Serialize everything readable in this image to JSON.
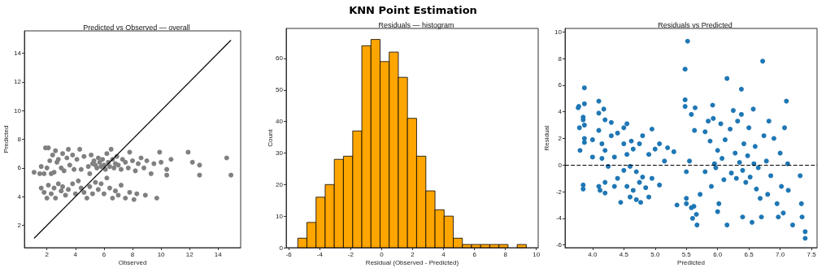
{
  "chart_data": [
    {
      "type": "other",
      "title": "KNN Point Estimation"
    },
    {
      "type": "scatter",
      "title": "Predicted vs Observed — overall",
      "xlabel": "Observed",
      "ylabel": "Predicted",
      "xlim": [
        0.42,
        15.58
      ],
      "ylim": [
        0.45,
        15.55
      ],
      "xticks": [
        2,
        4,
        6,
        8,
        10,
        12,
        14
      ],
      "yticks": [
        2,
        4,
        6,
        8,
        10,
        12,
        14
      ],
      "grid": false,
      "marker": "circle",
      "series": [
        {
          "type": "scatter",
          "color": "#808080",
          "x": [
            1.1,
            1.5,
            1.6,
            1.8,
            1.9,
            2.0,
            2.1,
            2.2,
            2.3,
            2.4,
            2.5,
            2.6,
            2.7,
            2.8,
            3.0,
            3.1,
            3.2,
            3.4,
            3.5,
            3.6,
            3.8,
            3.9,
            4.1,
            4.3,
            4.4,
            4.6,
            4.9,
            5.0,
            5.1,
            5.2,
            5.3,
            5.4,
            5.5,
            5.6,
            5.7,
            5.8,
            5.9,
            6.0,
            6.1,
            6.2,
            6.3,
            6.4,
            6.5,
            6.6,
            6.7,
            6.8,
            6.9,
            7.0,
            7.2,
            7.3,
            7.5,
            7.7,
            7.8,
            8.0,
            8.2,
            8.4,
            8.6,
            8.8,
            9.0,
            9.3,
            9.5,
            9.9,
            10.0,
            10.4,
            10.4,
            10.7,
            11.9,
            12.2,
            12.7,
            12.7,
            14.6,
            14.9,
            1.6,
            1.8,
            2.0,
            2.1,
            2.3,
            2.5,
            2.6,
            2.8,
            3.0,
            3.1,
            3.3,
            3.5,
            3.8,
            4.0,
            4.2,
            4.4,
            4.6,
            4.8,
            5.0,
            5.2,
            5.4,
            5.6,
            5.8,
            6.0,
            6.2,
            6.4,
            6.6,
            6.8,
            7.0,
            7.2,
            7.5,
            7.8,
            8.1,
            8.3,
            8.9,
            9.7
          ],
          "values": [
            5.7,
            5.6,
            6.1,
            5.6,
            7.4,
            6.0,
            7.4,
            6.5,
            5.6,
            6.9,
            5.7,
            7.2,
            6.4,
            6.6,
            6.0,
            7.0,
            5.8,
            6.7,
            7.3,
            6.2,
            6.9,
            5.9,
            6.6,
            7.3,
            5.9,
            6.8,
            6.1,
            5.6,
            6.9,
            6.3,
            6.5,
            6.2,
            6.0,
            6.7,
            6.4,
            6.1,
            6.6,
            6.2,
            5.9,
            7.0,
            6.4,
            6.1,
            7.3,
            6.6,
            6.0,
            6.3,
            6.8,
            6.2,
            5.9,
            6.6,
            6.4,
            6.0,
            7.1,
            6.5,
            5.8,
            6.3,
            6.7,
            6.0,
            6.5,
            5.6,
            6.3,
            7.1,
            6.4,
            5.5,
            5.9,
            6.6,
            7.1,
            6.4,
            6.2,
            5.5,
            6.7,
            5.5,
            4.6,
            4.3,
            3.9,
            4.8,
            4.2,
            4.6,
            3.9,
            4.9,
            4.4,
            4.7,
            4.1,
            4.5,
            4.9,
            4.2,
            5.1,
            4.6,
            4.3,
            3.9,
            4.7,
            4.2,
            5.0,
            4.5,
            4.9,
            4.2,
            5.3,
            4.6,
            3.9,
            4.4,
            4.1,
            4.8,
            3.9,
            4.3,
            3.8,
            4.2,
            4.1,
            3.9
          ]
        },
        {
          "type": "line",
          "color": "#000000",
          "marker": "none",
          "line_style": "solid",
          "x": [
            1.1,
            14.9
          ],
          "values": [
            1.1,
            14.9
          ]
        }
      ]
    },
    {
      "type": "histogram",
      "title": "Residuals — histogram",
      "xlabel": "Residual (Observed - Predicted)",
      "ylabel": "Count",
      "xlim": [
        -6.17,
        10.12
      ],
      "ylim": [
        0,
        69.5
      ],
      "xticks": [
        -6,
        -4,
        -2,
        0,
        2,
        4,
        6,
        8,
        10
      ],
      "yticks": [
        0,
        10,
        20,
        30,
        40,
        50,
        60
      ],
      "grid": false,
      "color": "#ffa500",
      "bins": [
        -5.42,
        -4.83,
        -4.24,
        -3.65,
        -3.06,
        -2.47,
        -1.87,
        -1.28,
        -0.69,
        -0.1,
        0.49,
        1.08,
        1.67,
        2.26,
        2.86,
        3.45,
        4.04,
        4.63,
        5.22,
        5.81,
        6.4,
        6.99,
        7.58,
        8.17,
        8.76,
        9.35
      ],
      "values": [
        3,
        8,
        16,
        20,
        28,
        29,
        37,
        64,
        66,
        59,
        62,
        54,
        41,
        29,
        18,
        12,
        10,
        3,
        1,
        1,
        1,
        1,
        1,
        0,
        1
      ]
    },
    {
      "type": "scatter",
      "title": "Residuals vs Predicted",
      "xlabel": "Predicted",
      "ylabel": "Residual",
      "xlim": [
        3.56,
        7.59
      ],
      "ylim": [
        -6.2,
        10.26
      ],
      "xticks": [
        {
          "value": 4,
          "label": "4.0"
        },
        4.5,
        {
          "value": 5,
          "label": "5.0"
        },
        5.5,
        {
          "value": 6,
          "label": "6.0"
        },
        6.5,
        {
          "value": 7,
          "label": "7.0"
        },
        7.5
      ],
      "yticks": [
        -6,
        -4,
        -2,
        0,
        2,
        4,
        6,
        8,
        10
      ],
      "grid": false,
      "marker": "circle",
      "ref_lines": [
        {
          "axis": "y",
          "value": 0,
          "color": "#000000",
          "line_style": "dashed"
        }
      ],
      "series": [
        {
          "type": "scatter",
          "color": "#1f77b4",
          "x": [
            3.77,
            3.78,
            3.79,
            3.8,
            3.85,
            3.85,
            3.85,
            3.85,
            3.87,
            3.87,
            3.87,
            3.87,
            3.87,
            4.0,
            4.0,
            4.1,
            4.1,
            4.1,
            4.1,
            4.12,
            4.15,
            4.15,
            4.18,
            4.2,
            4.2,
            4.2,
            4.2,
            4.25,
            4.3,
            4.3,
            4.35,
            4.35,
            4.4,
            4.4,
            4.45,
            4.5,
            4.5,
            4.5,
            4.55,
            4.55,
            4.55,
            4.6,
            4.6,
            4.62,
            4.65,
            4.65,
            4.7,
            4.7,
            4.75,
            4.75,
            4.77,
            4.8,
            4.8,
            4.85,
            4.9,
            4.9,
            4.95,
            4.95,
            5.0,
            5.07,
            5.07,
            5.15,
            5.2,
            5.3,
            5.35,
            5.52,
            5.48,
            5.48,
            5.48,
            5.5,
            5.5,
            5.5,
            5.55,
            5.58,
            5.58,
            5.6,
            5.62,
            5.63,
            5.64,
            5.66,
            5.67,
            5.72,
            5.8,
            5.8,
            5.85,
            5.88,
            5.9,
            5.92,
            5.93,
            5.95,
            5.97,
            6.0,
            6.0,
            6.02,
            6.05,
            6.07,
            6.1,
            6.12,
            6.15,
            6.15,
            6.2,
            6.22,
            6.25,
            6.28,
            6.3,
            6.32,
            6.35,
            6.38,
            6.38,
            6.4,
            6.4,
            6.42,
            6.45,
            6.48,
            6.5,
            6.52,
            6.55,
            6.57,
            6.58,
            6.6,
            6.62,
            6.65,
            6.68,
            6.7,
            6.72,
            6.74,
            6.78,
            6.8,
            6.82,
            6.85,
            6.9,
            6.95,
            6.97,
            7.0,
            7.02,
            7.05,
            7.07,
            7.1,
            7.12,
            7.13,
            7.2,
            7.32,
            7.34,
            7.35,
            7.4,
            7.4
          ],
          "values": [
            4.3,
            4.4,
            2.8,
            1.1,
            3.6,
            3.4,
            -1.5,
            -1.8,
            5.8,
            4.6,
            3.0,
            2.0,
            1.7,
            1.9,
            0.6,
            4.8,
            3.9,
            2.6,
            -1.6,
            -1.9,
            1.6,
            0.5,
            4.2,
            3.4,
            1.1,
            -1.3,
            -2.1,
            -0.1,
            3.2,
            2.2,
            0.6,
            -1.6,
            2.4,
            -1.0,
            -2.8,
            2.8,
            1.6,
            -0.4,
            3.1,
            0.8,
            -1.6,
            -0.1,
            -2.4,
            1.8,
            1.2,
            -1.9,
            -0.5,
            -2.6,
            1.6,
            -1.3,
            -2.8,
            2.2,
            -0.9,
            -1.7,
            0.8,
            -2.4,
            2.7,
            -1.0,
            1.2,
            1.6,
            -1.5,
            0.3,
            1.3,
            1.0,
            -3.0,
            9.3,
            7.2,
            4.9,
            4.4,
            -0.5,
            -2.5,
            -2.9,
            0.3,
            3.8,
            -3.2,
            -4.0,
            -3.1,
            2.6,
            4.3,
            -3.7,
            -4.5,
            -2.2,
            2.5,
            -0.5,
            3.3,
            1.8,
            -1.6,
            4.5,
            3.5,
            0.1,
            -0.2,
            1.1,
            -3.5,
            -2.9,
            3.1,
            0.5,
            -1.1,
            1.9,
            6.5,
            -4.5,
            2.7,
            -0.6,
            4.1,
            0.9,
            -1.0,
            3.3,
            0.2,
            5.7,
            3.8,
            -0.4,
            -3.9,
            1.6,
            -1.3,
            0.7,
            2.8,
            -0.9,
            -4.3,
            4.2,
            0.1,
            1.4,
            -1.8,
            -0.2,
            -2.5,
            -3.9,
            7.8,
            2.2,
            0.3,
            -2.2,
            3.3,
            -0.8,
            2.0,
            -2.9,
            -3.9,
            0.9,
            -1.6,
            -3.6,
            2.8,
            4.8,
            0.1,
            -1.9,
            -4.5,
            -0.8,
            -2.9,
            -3.9,
            -5.0,
            -5.5
          ]
        }
      ]
    }
  ]
}
